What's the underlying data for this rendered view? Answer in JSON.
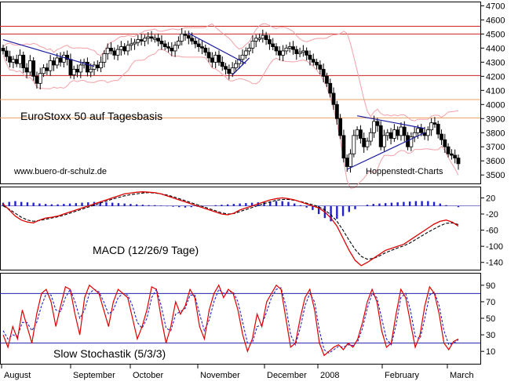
{
  "chart_data": [
    {
      "type": "candlestick",
      "title": "EuroStoxx 50 auf Tagesbasis",
      "watermark": "www.buero-dr-schulz.de",
      "source": "Hoppenstedt-Charts",
      "y_ticks": [
        3500,
        3600,
        3700,
        3800,
        3900,
        4000,
        4100,
        4200,
        4300,
        4400,
        4500,
        4600,
        4700
      ],
      "ylim": [
        3440,
        4730
      ],
      "horizontal_lines": [
        {
          "value": 4555,
          "color": "#cc2222"
        },
        {
          "value": 4500,
          "color": "#cc2222"
        },
        {
          "value": 4205,
          "color": "#cc2222"
        },
        {
          "value": 4035,
          "color": "#e8a060"
        },
        {
          "value": 3905,
          "color": "#e8a060"
        }
      ],
      "close_series": [
        4380,
        4340,
        4300,
        4320,
        4290,
        4350,
        4260,
        4230,
        4310,
        4200,
        4150,
        4220,
        4260,
        4240,
        4310,
        4280,
        4330,
        4300,
        4350,
        4320,
        4210,
        4250,
        4230,
        4280,
        4300,
        4230,
        4250,
        4280,
        4260,
        4300,
        4360,
        4400,
        4380,
        4350,
        4390,
        4410,
        4380,
        4420,
        4430,
        4440,
        4460,
        4450,
        4470,
        4480,
        4470,
        4470,
        4450,
        4430,
        4410,
        4400,
        4380,
        4420,
        4450,
        4500,
        4490,
        4470,
        4450,
        4430,
        4410,
        4400,
        4370,
        4330,
        4300,
        4350,
        4300,
        4270,
        4250,
        4220,
        4260,
        4290,
        4320,
        4350,
        4380,
        4400,
        4450,
        4470,
        4470,
        4490,
        4460,
        4430,
        4410,
        4380,
        4350,
        4380,
        4400,
        4410,
        4390,
        4360,
        4370,
        4380,
        4350,
        4320,
        4300,
        4280,
        4250,
        4200,
        4150,
        4080,
        4000,
        3900,
        3780,
        3620,
        3560,
        3650,
        3780,
        3820,
        3760,
        3700,
        3740,
        3800,
        3880,
        3850,
        3700,
        3780,
        3800,
        3760,
        3820,
        3780,
        3840,
        3780,
        3700,
        3770,
        3800,
        3830,
        3800,
        3780,
        3820,
        3870,
        3860,
        3790,
        3750,
        3700,
        3650,
        3640,
        3620,
        3580
      ],
      "trendlines": [
        {
          "from": [
            0,
            4460
          ],
          "to": [
            27,
            4270
          ]
        },
        {
          "from": [
            55,
            4505
          ],
          "to": [
            72,
            4290
          ]
        },
        {
          "from": [
            68,
            4210
          ],
          "to": [
            73,
            4330
          ]
        },
        {
          "from": [
            102,
            3540
          ],
          "to": [
            125,
            3800
          ]
        },
        {
          "from": [
            105,
            3920
          ],
          "to": [
            125,
            3830
          ]
        }
      ]
    },
    {
      "type": "line",
      "label": "MACD (12/26/9 Tage)",
      "y_ticks": [
        20,
        -20,
        -60,
        -100,
        -140
      ],
      "ylim": [
        -158,
        48
      ],
      "macd": [
        5,
        -10,
        -25,
        -35,
        -40,
        -42,
        -35,
        -30,
        -28,
        -25,
        -20,
        -15,
        -10,
        -5,
        0,
        5,
        10,
        15,
        20,
        25,
        30,
        32,
        34,
        35,
        34,
        33,
        30,
        25,
        20,
        15,
        10,
        5,
        0,
        -5,
        -10,
        -15,
        -20,
        -22,
        -18,
        -10,
        -5,
        0,
        5,
        10,
        15,
        18,
        20,
        18,
        15,
        10,
        5,
        0,
        -5,
        -15,
        -30,
        -50,
        -80,
        -110,
        -135,
        -148,
        -140,
        -130,
        -120,
        -110,
        -105,
        -100,
        -95,
        -85,
        -75,
        -65,
        -55,
        -45,
        -38,
        -35,
        -40,
        -50
      ],
      "signal": [
        0,
        -8,
        -18,
        -28,
        -35,
        -38,
        -36,
        -33,
        -30,
        -27,
        -23,
        -18,
        -13,
        -8,
        -3,
        2,
        7,
        12,
        17,
        21,
        25,
        28,
        30,
        32,
        33,
        32,
        30,
        27,
        23,
        18,
        13,
        8,
        3,
        -2,
        -7,
        -12,
        -17,
        -20,
        -19,
        -14,
        -9,
        -4,
        1,
        6,
        10,
        14,
        16,
        16,
        14,
        11,
        7,
        3,
        -2,
        -10,
        -22,
        -38,
        -60,
        -85,
        -108,
        -125,
        -132,
        -130,
        -124,
        -116,
        -110,
        -104,
        -99,
        -92,
        -83,
        -74,
        -65,
        -57,
        -49,
        -43,
        -42,
        -46
      ],
      "histogram": [
        8,
        10,
        12,
        10,
        9,
        8,
        6,
        5,
        4,
        4,
        5,
        6,
        7,
        8,
        9,
        10,
        10,
        9,
        8,
        7,
        6,
        5,
        4,
        3,
        2,
        2,
        1,
        -1,
        -2,
        -3,
        -4,
        -3,
        -2,
        -1,
        0,
        2,
        3,
        4,
        5,
        6,
        7,
        8,
        9,
        10,
        11,
        12,
        12,
        10,
        6,
        2,
        -4,
        -10,
        -20,
        -30,
        -38,
        -32,
        -25,
        -15,
        -8,
        0,
        3,
        5,
        6,
        7,
        8,
        9,
        10,
        11,
        12,
        12,
        12,
        10,
        6,
        2,
        0,
        -3
      ]
    },
    {
      "type": "line",
      "label": "Slow Stochastik (5/3/3)",
      "y_ticks": [
        90,
        70,
        50,
        30,
        10
      ],
      "ylim": [
        -5,
        105
      ],
      "reference_lines": [
        80,
        20
      ],
      "k": [
        30,
        15,
        40,
        25,
        60,
        40,
        20,
        55,
        80,
        85,
        70,
        40,
        65,
        88,
        85,
        55,
        30,
        75,
        90,
        85,
        80,
        60,
        40,
        70,
        85,
        80,
        75,
        50,
        25,
        40,
        60,
        88,
        85,
        50,
        20,
        40,
        70,
        55,
        65,
        85,
        75,
        40,
        25,
        60,
        80,
        90,
        75,
        85,
        80,
        60,
        30,
        10,
        25,
        55,
        40,
        70,
        80,
        90,
        85,
        50,
        15,
        20,
        50,
        75,
        85,
        60,
        20,
        5,
        10,
        15,
        18,
        12,
        20,
        15,
        25,
        45,
        70,
        85,
        70,
        35,
        15,
        20,
        55,
        85,
        75,
        45,
        15,
        30,
        65,
        88,
        80,
        55,
        20,
        12,
        22,
        25
      ],
      "d": [
        35,
        25,
        30,
        28,
        45,
        45,
        35,
        45,
        65,
        80,
        78,
        60,
        58,
        75,
        85,
        70,
        50,
        60,
        80,
        85,
        82,
        70,
        55,
        60,
        75,
        80,
        78,
        65,
        45,
        38,
        50,
        75,
        85,
        65,
        38,
        35,
        55,
        58,
        62,
        78,
        78,
        55,
        35,
        48,
        70,
        85,
        80,
        82,
        82,
        70,
        45,
        20,
        20,
        40,
        42,
        58,
        75,
        85,
        87,
        65,
        30,
        18,
        38,
        65,
        80,
        70,
        35,
        12,
        8,
        12,
        16,
        15,
        18,
        17,
        22,
        38,
        62,
        80,
        75,
        50,
        25,
        18,
        42,
        75,
        80,
        60,
        28,
        25,
        50,
        78,
        82,
        65,
        35,
        18,
        20,
        24
      ]
    }
  ],
  "x_axis": {
    "labels": [
      "August",
      "September",
      "October",
      "November",
      "December",
      "2008",
      "February",
      "March"
    ]
  }
}
